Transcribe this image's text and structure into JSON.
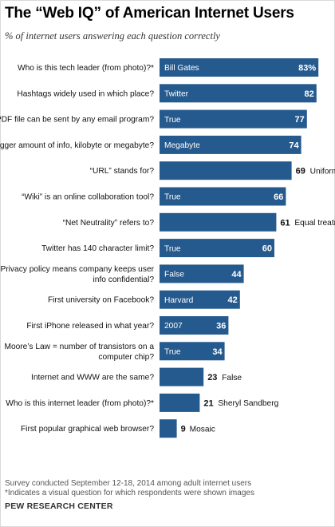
{
  "header": {
    "title": "The “Web IQ” of American Internet Users",
    "subtitle": "% of internet users answering each question correctly"
  },
  "footnotes": {
    "survey": "Survey conducted September 12-18, 2014 among adult internet users",
    "visual": "*Indicates a visual question for which respondents were shown images",
    "source": "PEW RESEARCH CENTER"
  },
  "colors": {
    "bar": "#255A8E",
    "bar_text": "#ffffff"
  },
  "chart_data": {
    "type": "bar",
    "orientation": "horizontal",
    "xlim": [
      0,
      83
    ],
    "categories": [
      [
        "Who is this tech leader (from photo)?*"
      ],
      [
        "Hashtags widely used in which place?"
      ],
      [
        "PDF file can be sent by any email program?"
      ],
      [
        "Bigger amount of info, kilobyte or megabyte?"
      ],
      [
        "“URL” stands for?"
      ],
      [
        "“Wiki” is an online collaboration tool?"
      ],
      [
        "“Net Neutrality” refers to?"
      ],
      [
        "Twitter has 140 character limit?"
      ],
      [
        "Privacy policy means company keeps user",
        "info confidential?"
      ],
      [
        "First university on Facebook?"
      ],
      [
        "First iPhone released in what year?"
      ],
      [
        "Moore’s Law = number of transistors on a",
        "computer chip?"
      ],
      [
        "Internet and WWW are the same?"
      ],
      [
        "Who is this internet leader (from photo)?*"
      ],
      [
        "First popular graphical web browser?"
      ]
    ],
    "answers": [
      "Bill Gates",
      "Twitter",
      "True",
      "Megabyte",
      "Uniform Resource Locator",
      "True",
      "Equal treatment of digital content",
      "True",
      "False",
      "Harvard",
      "2007",
      "True",
      "False",
      "Sheryl Sandberg",
      "Mosaic"
    ],
    "values": [
      83,
      82,
      77,
      74,
      69,
      66,
      61,
      60,
      44,
      42,
      36,
      34,
      23,
      21,
      9
    ],
    "value_labels": [
      "83%",
      "82",
      "77",
      "74",
      "69",
      "66",
      "61",
      "60",
      "44",
      "42",
      "36",
      "34",
      "23",
      "21",
      "9"
    ]
  }
}
